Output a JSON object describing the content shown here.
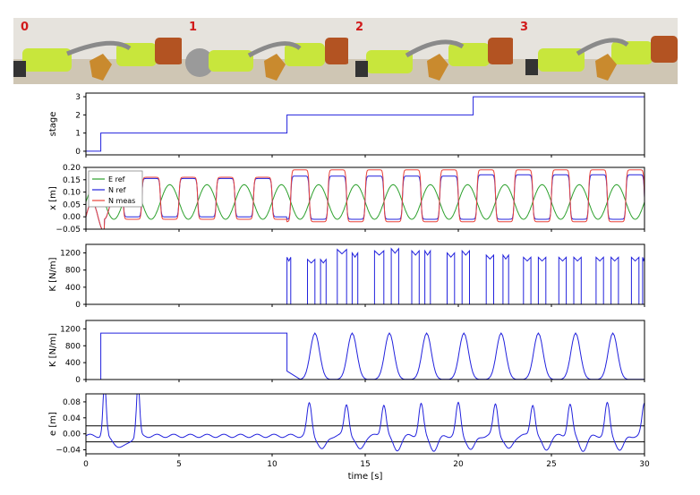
{
  "photos": {
    "labels": [
      "0",
      "1",
      "2",
      "3"
    ],
    "colors": {
      "robot_gripper": "#c8e63c",
      "tool": "#c98a2e",
      "robot_joint": "#b35322",
      "wall": "#e6e3dd",
      "table": "#cfc6b4"
    }
  },
  "chart_data": [
    {
      "type": "line",
      "ylabel": "stage",
      "xlim": [
        0,
        30
      ],
      "ylim": [
        -0.2,
        3.2
      ],
      "yticks": [
        "0",
        "1",
        "2",
        "3"
      ],
      "ytick_values": [
        0,
        1,
        2,
        3
      ],
      "series": [
        {
          "color": "#2222dd",
          "x": [
            0,
            0.8,
            0.8,
            10.8,
            10.8,
            20.8,
            20.8,
            30
          ],
          "y": [
            0,
            0,
            1,
            1,
            2,
            2,
            3,
            3
          ]
        }
      ]
    },
    {
      "type": "line",
      "ylabel": "x [m]",
      "xlim": [
        0,
        30
      ],
      "ylim": [
        -0.05,
        0.2
      ],
      "yticks": [
        "0.20",
        "0.15",
        "0.10",
        "0.05",
        "0.00",
        "−0.05"
      ],
      "ytick_values": [
        0.2,
        0.15,
        0.1,
        0.05,
        0.0,
        -0.05
      ],
      "legend": {
        "position": "top-left",
        "entries": [
          {
            "name": "E ref",
            "color": "#2ca02c"
          },
          {
            "name": "N ref",
            "color": "#2222dd"
          },
          {
            "name": "N meas",
            "color": "#e8433a"
          }
        ]
      },
      "series": [
        {
          "name": "E ref",
          "color": "#2ca02c",
          "period": 2.0,
          "amplitude": 0.07,
          "offset": 0.06,
          "x_start": 0,
          "x_end": 30
        },
        {
          "name": "N ref",
          "color": "#2222dd",
          "period": 2.0,
          "phase_shift": 1.0,
          "stage_levels": [
            {
              "from": 2.0,
              "to": 10.8,
              "low": 0.0,
              "high": 0.155
            },
            {
              "from": 10.8,
              "to": 20.8,
              "low": -0.01,
              "high": 0.165
            },
            {
              "from": 20.8,
              "to": 30,
              "low": -0.01,
              "high": 0.17
            }
          ]
        },
        {
          "name": "N meas",
          "color": "#e8433a",
          "period": 2.0,
          "phase_shift": 1.0,
          "stage_levels": [
            {
              "from": 2.0,
              "to": 10.8,
              "low": -0.01,
              "high": 0.16
            },
            {
              "from": 10.8,
              "to": 20.8,
              "low": -0.02,
              "high": 0.19
            },
            {
              "from": 20.8,
              "to": 30,
              "low": -0.02,
              "high": 0.19
            }
          ]
        }
      ]
    },
    {
      "type": "line",
      "ylabel": "K [N/m]",
      "xlim": [
        0,
        30
      ],
      "ylim": [
        0,
        1400
      ],
      "yticks": [
        "1200",
        "800",
        "400",
        "0"
      ],
      "ytick_values": [
        1200,
        800,
        400,
        0
      ],
      "series": [
        {
          "color": "#2222dd",
          "pulses": [
            [
              10.8,
              11.0,
              1100
            ],
            [
              11.9,
              12.3,
              1050
            ],
            [
              12.6,
              12.9,
              1050
            ],
            [
              13.5,
              14.0,
              1280
            ],
            [
              14.3,
              14.6,
              1200
            ],
            [
              15.5,
              16.0,
              1250
            ],
            [
              16.4,
              16.8,
              1300
            ],
            [
              17.5,
              17.9,
              1250
            ],
            [
              18.2,
              18.5,
              1250
            ],
            [
              19.4,
              19.8,
              1200
            ],
            [
              20.2,
              20.6,
              1250
            ],
            [
              21.5,
              21.9,
              1150
            ],
            [
              22.4,
              22.7,
              1150
            ],
            [
              23.5,
              23.9,
              1100
            ],
            [
              24.3,
              24.7,
              1100
            ],
            [
              25.4,
              25.8,
              1100
            ],
            [
              26.2,
              26.6,
              1100
            ],
            [
              27.4,
              27.8,
              1100
            ],
            [
              28.2,
              28.6,
              1100
            ],
            [
              29.3,
              29.7,
              1100
            ],
            [
              29.9,
              30.0,
              1100
            ]
          ]
        }
      ]
    },
    {
      "type": "line",
      "ylabel": "K [N/m]",
      "xlim": [
        0,
        30
      ],
      "ylim": [
        0,
        1400
      ],
      "yticks": [
        "1200",
        "800",
        "400",
        "0"
      ],
      "ytick_values": [
        1200,
        800,
        400,
        0
      ],
      "series": [
        {
          "color": "#2222dd",
          "constant": {
            "from": 0.8,
            "to": 10.8,
            "value": 1100
          },
          "peaks": [
            12.3,
            14.3,
            16.3,
            18.3,
            20.3,
            22.3,
            24.3,
            26.3,
            28.3
          ],
          "peak_value": 1100
        }
      ]
    },
    {
      "type": "line",
      "ylabel": "e [m]",
      "xlabel": "time [s]",
      "xlim": [
        0,
        30
      ],
      "ylim": [
        -0.05,
        0.1
      ],
      "xticks": [
        "0",
        "5",
        "10",
        "15",
        "20",
        "25",
        "30"
      ],
      "xtick_values": [
        0,
        5,
        10,
        15,
        20,
        25,
        30
      ],
      "yticks": [
        "0.08",
        "0.04",
        "0.00",
        "−0.04"
      ],
      "ytick_values": [
        0.08,
        0.04,
        0.0,
        -0.04
      ],
      "hlines": [
        0.02,
        -0.02
      ],
      "series": [
        {
          "color": "#2222dd",
          "spikes": [
            [
              1.0,
              0.1
            ],
            [
              2.8,
              0.1
            ]
          ],
          "peaks": [
            12.0,
            14.0,
            16.0,
            18.0,
            20.0,
            22.0,
            24.0,
            26.0,
            28.0,
            30.0
          ],
          "peak_value": 0.08,
          "trough_value": -0.035
        }
      ]
    }
  ]
}
